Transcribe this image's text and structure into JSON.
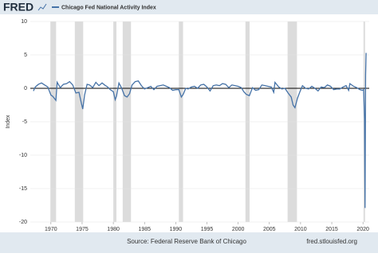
{
  "chart_data": {
    "type": "line",
    "logo": "FRED",
    "y_label": "Index",
    "source": "Source: Federal Reserve Bank of Chicago",
    "site": "fred.stlouisfed.org",
    "xlim": [
      1966.7,
      2021.0
    ],
    "ylim": [
      -20,
      10
    ],
    "xticks": [
      1970,
      1975,
      1980,
      1985,
      1990,
      1995,
      2000,
      2005,
      2010,
      2015,
      2020
    ],
    "yticks": [
      10,
      5,
      0,
      -5,
      -10,
      -15,
      -20
    ],
    "grid": true,
    "zero_line": 0,
    "recession_color": "#dcdcdc",
    "recessions": [
      [
        1969.92,
        1970.83
      ],
      [
        1973.83,
        1975.17
      ],
      [
        1980.0,
        1980.5
      ],
      [
        1981.5,
        1982.83
      ],
      [
        1990.5,
        1991.17
      ],
      [
        2001.17,
        2001.83
      ],
      [
        2007.92,
        2009.42
      ],
      [
        2020.08,
        2020.33
      ]
    ],
    "x": [
      1967.2,
      1967.5,
      1968.0,
      1968.5,
      1969.0,
      1969.5,
      1970.0,
      1970.3,
      1970.8,
      1971.0,
      1971.5,
      1972.0,
      1972.5,
      1973.0,
      1973.5,
      1974.0,
      1974.5,
      1974.9,
      1975.1,
      1975.4,
      1975.8,
      1976.2,
      1976.7,
      1977.2,
      1977.7,
      1978.2,
      1978.6,
      1979.1,
      1979.5,
      1980.0,
      1980.3,
      1980.5,
      1980.9,
      1981.3,
      1981.8,
      1982.2,
      1982.6,
      1983.0,
      1983.5,
      1984.0,
      1984.5,
      1985.0,
      1985.5,
      1986.0,
      1986.5,
      1987.0,
      1987.5,
      1988.0,
      1988.5,
      1989.0,
      1989.5,
      1990.0,
      1990.5,
      1990.9,
      1991.2,
      1991.6,
      1992.0,
      1992.5,
      1993.0,
      1993.5,
      1994.0,
      1994.5,
      1995.0,
      1995.5,
      1996.0,
      1996.5,
      1997.0,
      1997.5,
      1998.0,
      1998.5,
      1999.0,
      1999.5,
      2000.0,
      2000.5,
      2000.9,
      2001.3,
      2001.8,
      2002.3,
      2002.8,
      2003.3,
      2003.8,
      2004.3,
      2004.8,
      2005.3,
      2005.7,
      2005.9,
      2006.5,
      2007.0,
      2007.5,
      2008.0,
      2008.5,
      2008.8,
      2009.1,
      2009.5,
      2009.9,
      2010.3,
      2010.8,
      2011.3,
      2011.8,
      2012.3,
      2012.8,
      2013.3,
      2013.8,
      2014.3,
      2014.8,
      2015.3,
      2015.8,
      2016.3,
      2016.8,
      2017.3,
      2017.7,
      2017.9,
      2018.5,
      2019.0,
      2019.5,
      2019.9,
      2020.1,
      2020.25,
      2020.33,
      2020.42,
      2020.5
    ],
    "series": [
      {
        "name": "Chicago Fed National Activity Index",
        "color": "#4572a7",
        "values": [
          -0.4,
          0.2,
          0.6,
          0.8,
          0.5,
          0.2,
          -1.0,
          -1.2,
          -1.8,
          0.9,
          0.1,
          0.6,
          0.7,
          1.0,
          0.5,
          -0.7,
          -0.6,
          -2.3,
          -3.1,
          -1.0,
          0.6,
          0.5,
          0.1,
          0.9,
          0.4,
          0.8,
          0.5,
          0.2,
          -0.2,
          -0.5,
          -1.7,
          -1.2,
          0.8,
          0.1,
          -1.1,
          -1.3,
          -0.8,
          0.5,
          1.0,
          1.1,
          0.4,
          -0.1,
          0.1,
          0.3,
          -0.2,
          0.3,
          0.4,
          0.5,
          0.3,
          0.1,
          -0.3,
          -0.2,
          -0.2,
          -1.3,
          -0.9,
          0.0,
          -0.1,
          0.2,
          0.3,
          0.0,
          0.5,
          0.6,
          0.2,
          -0.4,
          0.4,
          0.5,
          0.4,
          0.7,
          0.6,
          0.1,
          0.5,
          0.4,
          0.3,
          0.1,
          -0.5,
          -0.9,
          -1.1,
          0.1,
          -0.3,
          -0.2,
          0.5,
          0.4,
          0.3,
          0.2,
          -0.6,
          0.9,
          0.2,
          -0.1,
          0.0,
          -0.7,
          -1.3,
          -2.5,
          -2.9,
          -1.5,
          -0.5,
          0.4,
          0.0,
          -0.1,
          0.3,
          0.0,
          -0.4,
          0.2,
          0.1,
          0.5,
          0.3,
          -0.2,
          -0.1,
          -0.1,
          0.2,
          0.4,
          -0.3,
          0.7,
          0.3,
          0.1,
          -0.2,
          -0.3,
          -0.2,
          -4.6,
          -17.9,
          2.0,
          5.3
        ]
      }
    ]
  }
}
